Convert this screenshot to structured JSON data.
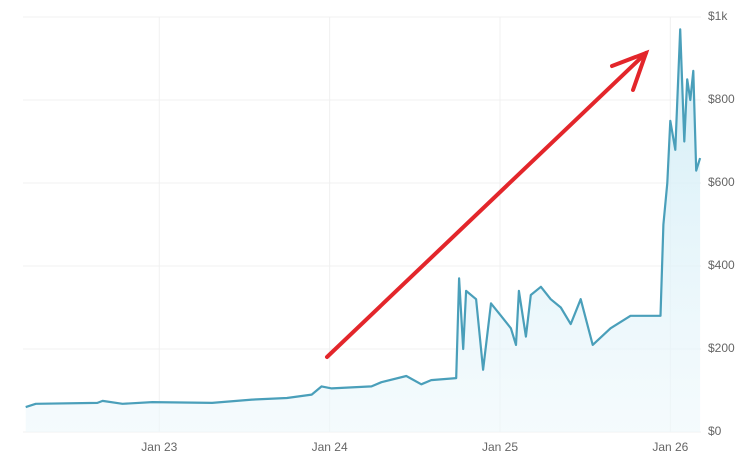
{
  "chart_data": {
    "type": "area",
    "x": [
      22.216,
      22.275,
      22.637,
      22.667,
      22.784,
      22.959,
      23.31,
      23.544,
      23.749,
      23.895,
      23.953,
      24.012,
      24.246,
      24.304,
      24.45,
      24.538,
      24.596,
      24.743,
      24.76,
      24.784,
      24.801,
      24.86,
      24.901,
      24.947,
      25.006,
      25.064,
      25.094,
      25.111,
      25.152,
      25.181,
      25.24,
      25.298,
      25.357,
      25.415,
      25.474,
      25.544,
      25.649,
      25.766,
      25.942,
      25.959,
      25.982,
      26.0,
      26.029,
      26.058,
      26.082,
      26.099,
      26.117,
      26.135,
      26.152,
      26.175
    ],
    "series": [
      {
        "color": "#4a9fba",
        "values": [
          60,
          68,
          70,
          75,
          68,
          72,
          70,
          78,
          82,
          90,
          110,
          105,
          110,
          120,
          135,
          115,
          125,
          130,
          370,
          200,
          340,
          320,
          150,
          310,
          280,
          250,
          210,
          340,
          230,
          330,
          350,
          320,
          300,
          260,
          320,
          210,
          250,
          280,
          280,
          500,
          600,
          750,
          680,
          970,
          700,
          850,
          800,
          870,
          630,
          660
        ]
      }
    ],
    "xlim": [
      22.2,
      26.18
    ],
    "xticks": [
      {
        "value": 23,
        "label": "Jan 23"
      },
      {
        "value": 24,
        "label": "Jan 24"
      },
      {
        "value": 25,
        "label": "Jan 25"
      },
      {
        "value": 26,
        "label": "Jan 26"
      }
    ],
    "ylim": [
      0,
      1000
    ],
    "yticks": [
      {
        "value": 0,
        "label": "$0"
      },
      {
        "value": 200,
        "label": "$200"
      },
      {
        "value": 400,
        "label": "$400"
      },
      {
        "value": 600,
        "label": "$600"
      },
      {
        "value": 800,
        "label": "$800"
      },
      {
        "value": 1000,
        "label": "$1k"
      }
    ],
    "grid": true
  }
}
